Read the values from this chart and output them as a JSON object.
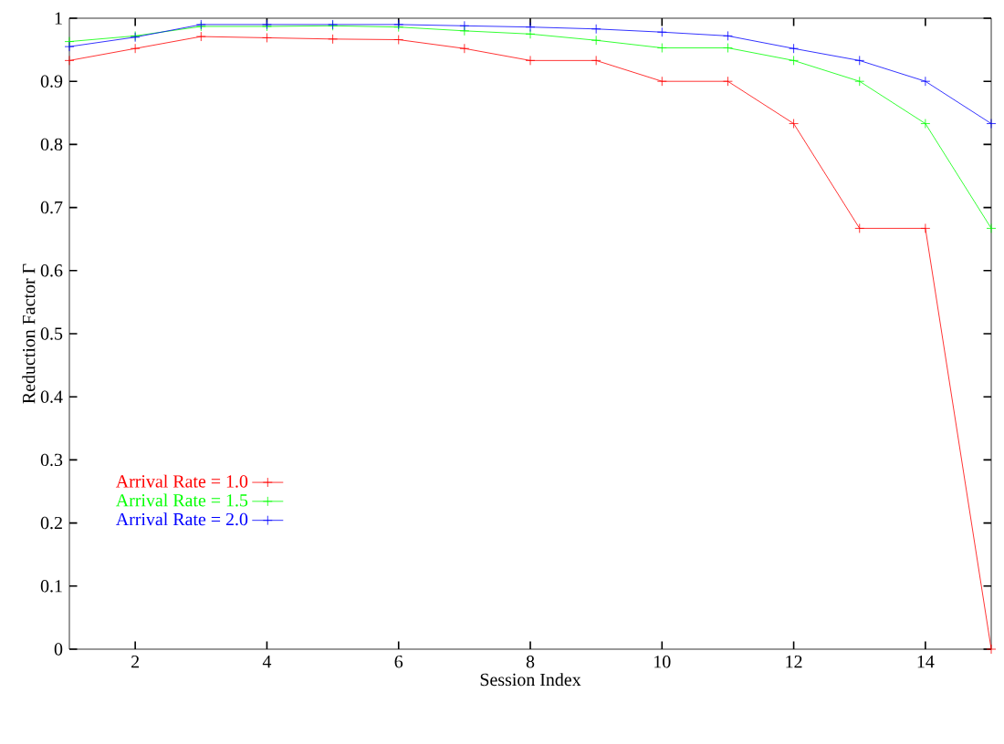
{
  "chart_data": {
    "type": "line",
    "xlabel": "Session Index",
    "ylabel": "Reduction Factor Γ",
    "x": [
      1,
      2,
      3,
      4,
      5,
      6,
      7,
      8,
      9,
      10,
      11,
      12,
      13,
      14,
      15
    ],
    "xlim": [
      1,
      15
    ],
    "xticks": [
      2,
      4,
      6,
      8,
      10,
      12,
      14
    ],
    "ylim": [
      0,
      1
    ],
    "yticks": [
      0,
      0.1,
      0.2,
      0.3,
      0.4,
      0.5,
      0.6,
      0.7,
      0.8,
      0.9,
      1
    ],
    "grid": false,
    "legend": "left",
    "series": [
      {
        "name": "Arrival Rate = 1.0",
        "color": "#ff0000",
        "marker": "cross",
        "values": [
          0.933,
          0.952,
          0.971,
          0.969,
          0.967,
          0.966,
          0.952,
          0.933,
          0.933,
          0.9,
          0.9,
          0.833,
          0.667,
          0.667,
          0.0
        ]
      },
      {
        "name": "Arrival Rate = 1.5",
        "color": "#00ff00",
        "marker": "cross",
        "values": [
          0.963,
          0.972,
          0.987,
          0.987,
          0.988,
          0.986,
          0.98,
          0.975,
          0.965,
          0.953,
          0.953,
          0.933,
          0.9,
          0.833,
          0.667
        ]
      },
      {
        "name": "Arrival Rate = 2.0",
        "color": "#0000ff",
        "marker": "cross",
        "values": [
          0.955,
          0.97,
          0.99,
          0.99,
          0.99,
          0.99,
          0.988,
          0.986,
          0.983,
          0.978,
          0.972,
          0.952,
          0.933,
          0.9,
          0.833
        ]
      }
    ]
  }
}
